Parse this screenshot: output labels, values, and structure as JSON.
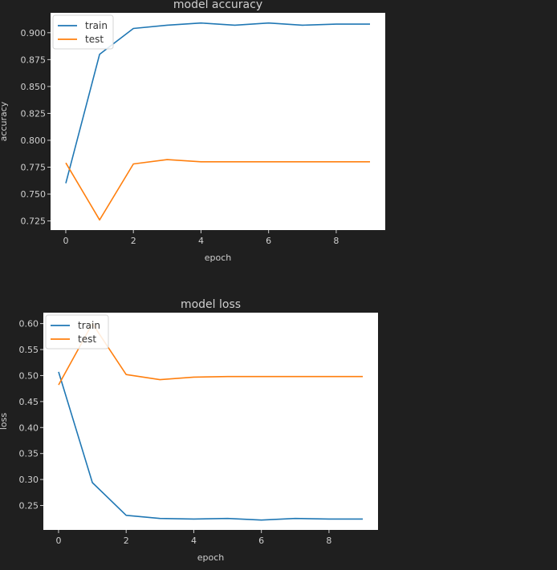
{
  "chart_data": [
    {
      "type": "line",
      "title": "model accuracy",
      "xlabel": "epoch",
      "ylabel": "accuracy",
      "xlim": [
        -0.45,
        9.45
      ],
      "ylim": [
        0.7165,
        0.9185
      ],
      "xticks": [
        "0",
        "2",
        "4",
        "6",
        "8"
      ],
      "yticks": [
        "0.725",
        "0.750",
        "0.775",
        "0.800",
        "0.825",
        "0.850",
        "0.875",
        "0.900"
      ],
      "legend": "upper left",
      "grid": false,
      "series": [
        {
          "name": "train",
          "color": "#1f77b4",
          "x": [
            0,
            1,
            2,
            3,
            4,
            5,
            6,
            7,
            8,
            9
          ],
          "values": [
            0.76,
            0.88,
            0.904,
            0.907,
            0.909,
            0.907,
            0.909,
            0.907,
            0.908,
            0.908
          ]
        },
        {
          "name": "test",
          "color": "#ff7f0e",
          "x": [
            0,
            1,
            2,
            3,
            4,
            5,
            6,
            7,
            8,
            9
          ],
          "values": [
            0.779,
            0.726,
            0.778,
            0.782,
            0.78,
            0.78,
            0.78,
            0.78,
            0.78,
            0.78
          ]
        }
      ]
    },
    {
      "type": "line",
      "title": "model loss",
      "xlabel": "epoch",
      "ylabel": "loss",
      "xlim": [
        -0.45,
        9.45
      ],
      "ylim": [
        0.203,
        0.621
      ],
      "xticks": [
        "0",
        "2",
        "4",
        "6",
        "8"
      ],
      "yticks": [
        "0.25",
        "0.30",
        "0.35",
        "0.40",
        "0.45",
        "0.50",
        "0.55",
        "0.60"
      ],
      "legend": "upper left",
      "grid": false,
      "series": [
        {
          "name": "train",
          "color": "#1f77b4",
          "x": [
            0,
            1,
            2,
            3,
            4,
            5,
            6,
            7,
            8,
            9
          ],
          "values": [
            0.507,
            0.294,
            0.231,
            0.225,
            0.224,
            0.225,
            0.222,
            0.225,
            0.224,
            0.224
          ]
        },
        {
          "name": "test",
          "color": "#ff7f0e",
          "x": [
            0,
            1,
            2,
            3,
            4,
            5,
            6,
            7,
            8,
            9
          ],
          "values": [
            0.482,
            0.6,
            0.502,
            0.492,
            0.497,
            0.498,
            0.498,
            0.498,
            0.498,
            0.498
          ]
        }
      ]
    }
  ]
}
